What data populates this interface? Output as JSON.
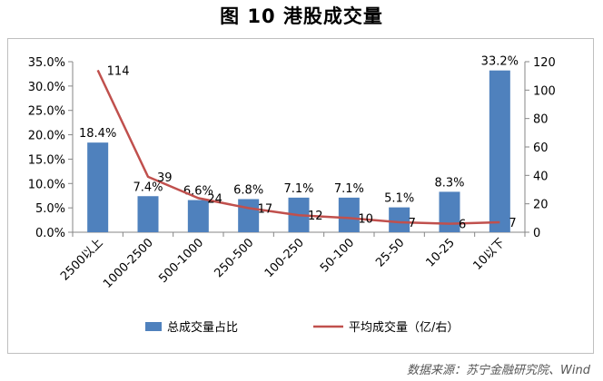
{
  "title": "图 10  港股成交量",
  "source": "数据来源：苏宁金融研究院、Wind",
  "chart_data": {
    "type": "bar",
    "categories": [
      "2500以上",
      "1000-2500",
      "500-1000",
      "250-500",
      "100-250",
      "50-100",
      "25-50",
      "10-25",
      "10以下"
    ],
    "series": [
      {
        "name": "总成交量占比",
        "type": "bar",
        "axis": "left",
        "color": "#4f81bd",
        "values": [
          18.4,
          7.4,
          6.6,
          6.8,
          7.1,
          7.1,
          5.1,
          8.3,
          33.2
        ],
        "labels": [
          "18.4%",
          "7.4%",
          "6.6%",
          "6.8%",
          "7.1%",
          "7.1%",
          "5.1%",
          "8.3%",
          "33.2%"
        ]
      },
      {
        "name": "平均成交量（亿/右）",
        "type": "line",
        "axis": "right",
        "color": "#c0504d",
        "values": [
          114,
          39,
          24,
          17,
          12,
          10,
          7,
          6,
          7
        ],
        "labels": [
          "114",
          "39",
          "24",
          "17",
          "12",
          "10",
          "7",
          "6",
          "7"
        ]
      }
    ],
    "y_left": {
      "min": 0,
      "max": 35,
      "ticks": [
        "0.0%",
        "5.0%",
        "10.0%",
        "15.0%",
        "20.0%",
        "25.0%",
        "30.0%",
        "35.0%"
      ]
    },
    "y_right": {
      "min": 0,
      "max": 120,
      "ticks": [
        "0",
        "20",
        "40",
        "60",
        "80",
        "100",
        "120"
      ]
    },
    "legend_position": "bottom",
    "grid": false
  }
}
